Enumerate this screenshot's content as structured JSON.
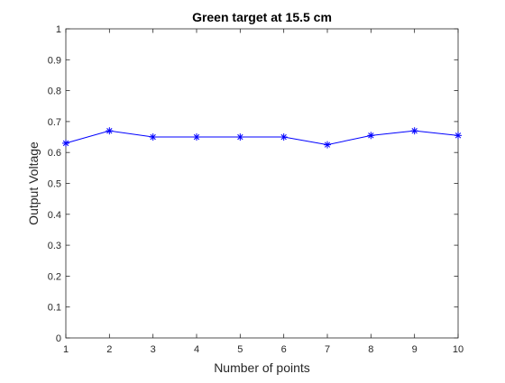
{
  "chart_data": {
    "type": "line",
    "title": "Green target at 15.5 cm",
    "xlabel": "Number of points",
    "ylabel": "Output Voltage",
    "xlim": [
      1,
      10
    ],
    "ylim": [
      0,
      1
    ],
    "xticks": [
      "1",
      "2",
      "3",
      "4",
      "5",
      "6",
      "7",
      "8",
      "9",
      "10"
    ],
    "yticks": [
      "0",
      "0.1",
      "0.2",
      "0.3",
      "0.4",
      "0.5",
      "0.6",
      "0.7",
      "0.8",
      "0.9",
      "1"
    ],
    "grid": false,
    "series": [
      {
        "marker": "asterisk",
        "color": "#0000ff",
        "x": [
          1,
          2,
          3,
          4,
          5,
          6,
          7,
          8,
          9,
          10
        ],
        "y": [
          0.63,
          0.67,
          0.65,
          0.65,
          0.65,
          0.65,
          0.625,
          0.655,
          0.67,
          0.655
        ]
      }
    ]
  }
}
